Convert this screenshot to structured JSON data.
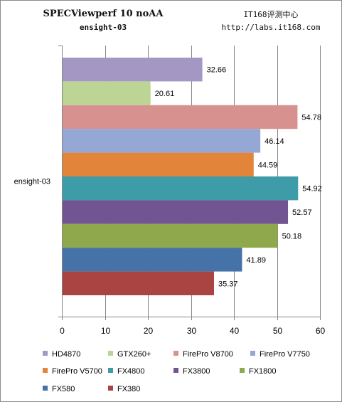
{
  "header": {
    "title": "SPECViewperf 10 noAA",
    "subtitle": "ensight-03",
    "source_name": "IT168评测中心",
    "source_url": "http://labs.it168.com"
  },
  "colors": {
    "HD4870": "#a597c4",
    "GTX260+": "#bcd595",
    "FirePro V8700": "#d79290",
    "FirePro V7750": "#95a8d5",
    "FirePro V5700": "#e2843a",
    "FX4800": "#3e9ba8",
    "FX3800": "#715592",
    "FX1800": "#8ea84b",
    "FX580": "#4572a7",
    "FX380": "#a94442",
    "grid": "#868686"
  },
  "chart_data": {
    "type": "bar",
    "orientation": "horizontal",
    "categories": [
      "ensight-03"
    ],
    "series": [
      {
        "name": "HD4870",
        "values": [
          32.66
        ]
      },
      {
        "name": "GTX260+",
        "values": [
          20.61
        ]
      },
      {
        "name": "FirePro V8700",
        "values": [
          54.78
        ]
      },
      {
        "name": "FirePro V7750",
        "values": [
          46.14
        ]
      },
      {
        "name": "FirePro V5700",
        "values": [
          44.59
        ]
      },
      {
        "name": "FX4800",
        "values": [
          54.92
        ]
      },
      {
        "name": "FX3800",
        "values": [
          52.57
        ]
      },
      {
        "name": "FX1800",
        "values": [
          50.18
        ]
      },
      {
        "name": "FX580",
        "values": [
          41.89
        ]
      },
      {
        "name": "FX380",
        "values": [
          35.37
        ]
      }
    ],
    "xlim": [
      0,
      60
    ],
    "xticks": [
      0,
      10,
      20,
      30,
      40,
      50,
      60
    ],
    "grid": true,
    "legend_position": "bottom",
    "data_labels": [
      "32.66",
      "20.61",
      "54.78",
      "46.14",
      "44.59",
      "54.92",
      "52.57",
      "50.18",
      "41.89",
      "35.37"
    ]
  }
}
